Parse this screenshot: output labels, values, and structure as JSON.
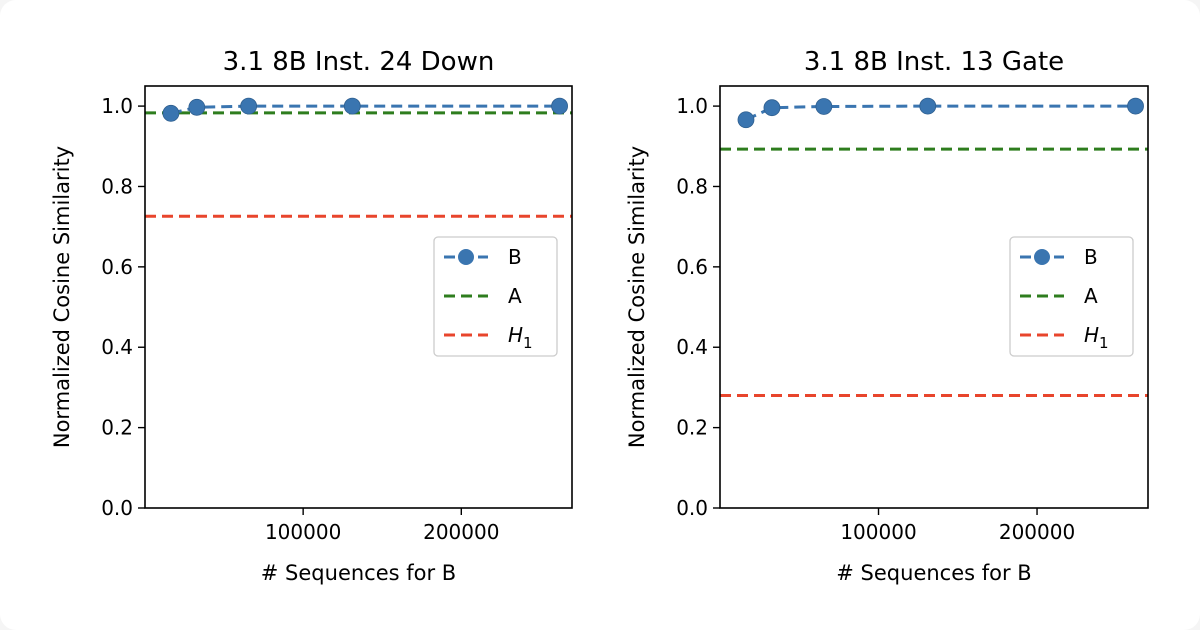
{
  "chart_data": [
    {
      "type": "line",
      "title": "3.1 8B Inst. 24 Down",
      "xlabel": "# Sequences for B",
      "ylabel": "Normalized Cosine Similarity",
      "xlim": [
        0,
        270000
      ],
      "ylim": [
        0.0,
        1.05
      ],
      "xticks": [
        100000,
        200000
      ],
      "xtick_labels": [
        "100000",
        "200000"
      ],
      "yticks": [
        0.0,
        0.2,
        0.4,
        0.6,
        0.8,
        1.0
      ],
      "ytick_labels": [
        "0.0",
        "0.2",
        "0.4",
        "0.6",
        "0.8",
        "1.0"
      ],
      "series": [
        {
          "name": "B",
          "style": "dashed-marker",
          "color": "#3a75b0",
          "x": [
            16384,
            32768,
            65536,
            131072,
            262144
          ],
          "y": [
            0.982,
            0.997,
            1.0,
            1.0,
            1.0
          ]
        },
        {
          "name": "A",
          "style": "hline",
          "color": "#2e7d1e",
          "y": 0.983
        },
        {
          "name": "H1",
          "style": "hline",
          "color": "#e8452c",
          "y": 0.726
        }
      ],
      "legend": {
        "placement": "center-right",
        "labels": [
          "B",
          "A",
          "H"
        ],
        "subscript": "1"
      }
    },
    {
      "type": "line",
      "title": "3.1 8B Inst. 13 Gate",
      "xlabel": "# Sequences for B",
      "ylabel": "Normalized Cosine Similarity",
      "xlim": [
        0,
        270000
      ],
      "ylim": [
        0.0,
        1.05
      ],
      "xticks": [
        100000,
        200000
      ],
      "xtick_labels": [
        "100000",
        "200000"
      ],
      "yticks": [
        0.0,
        0.2,
        0.4,
        0.6,
        0.8,
        1.0
      ],
      "ytick_labels": [
        "0.0",
        "0.2",
        "0.4",
        "0.6",
        "0.8",
        "1.0"
      ],
      "series": [
        {
          "name": "B",
          "style": "dashed-marker",
          "color": "#3a75b0",
          "x": [
            16384,
            32768,
            65536,
            131072,
            262144
          ],
          "y": [
            0.966,
            0.996,
            0.999,
            1.0,
            1.0
          ]
        },
        {
          "name": "A",
          "style": "hline",
          "color": "#2e7d1e",
          "y": 0.893
        },
        {
          "name": "H1",
          "style": "hline",
          "color": "#e8452c",
          "y": 0.28
        }
      ],
      "legend": {
        "placement": "center-right",
        "labels": [
          "B",
          "A",
          "H"
        ],
        "subscript": "1"
      }
    }
  ]
}
